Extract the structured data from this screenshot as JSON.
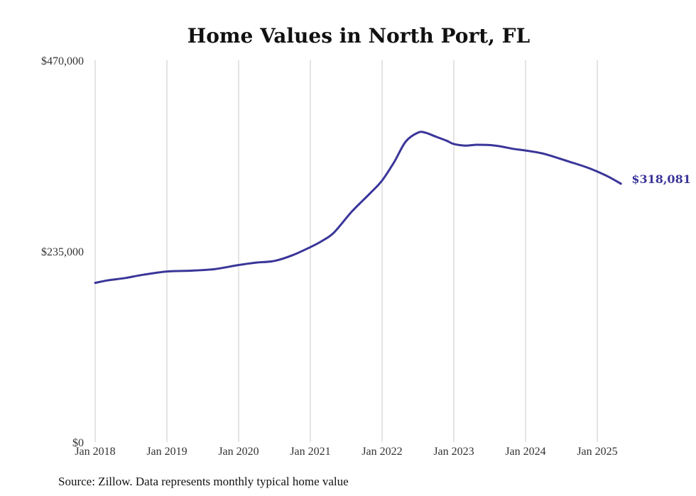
{
  "chart_data": {
    "type": "line",
    "title": "Home Values in North Port, FL",
    "xlabel": "",
    "ylabel": "",
    "ylim": [
      0,
      470000
    ],
    "yticks": [
      "$0",
      "$235,000",
      "$470,000"
    ],
    "ytick_values": [
      0,
      235000,
      470000
    ],
    "xticks": [
      "Jan 2018",
      "Jan 2019",
      "Jan 2020",
      "Jan 2021",
      "Jan 2022",
      "Jan 2023",
      "Jan 2024",
      "Jan 2025"
    ],
    "xtick_values": [
      2018,
      2019,
      2020,
      2021,
      2022,
      2023,
      2024,
      2025
    ],
    "xlim": [
      2018,
      2025.4
    ],
    "grid": "vertical",
    "legend": "none",
    "series": [
      {
        "color": "#3a3599",
        "x": [
          2018.0,
          2018.17,
          2018.42,
          2018.67,
          2019.0,
          2019.33,
          2019.67,
          2020.0,
          2020.25,
          2020.5,
          2020.75,
          2021.0,
          2021.17,
          2021.33,
          2021.58,
          2021.83,
          2022.0,
          2022.17,
          2022.33,
          2022.5,
          2022.6,
          2022.75,
          2022.9,
          2023.0,
          2023.17,
          2023.33,
          2023.58,
          2023.83,
          2024.0,
          2024.25,
          2024.58,
          2024.83,
          2025.0,
          2025.17,
          2025.33
        ],
        "y": [
          196000,
          199000,
          202000,
          206000,
          210000,
          211000,
          213000,
          218000,
          221000,
          223000,
          230000,
          240000,
          248000,
          258000,
          284000,
          306000,
          322000,
          345000,
          370000,
          381000,
          381000,
          376000,
          371000,
          367000,
          365000,
          366000,
          365000,
          361000,
          359000,
          355000,
          346000,
          339000,
          333000,
          326000,
          318081
        ]
      }
    ],
    "end_label": "$318,081",
    "source_note": "Source: Zillow. Data represents monthly typical home value"
  }
}
